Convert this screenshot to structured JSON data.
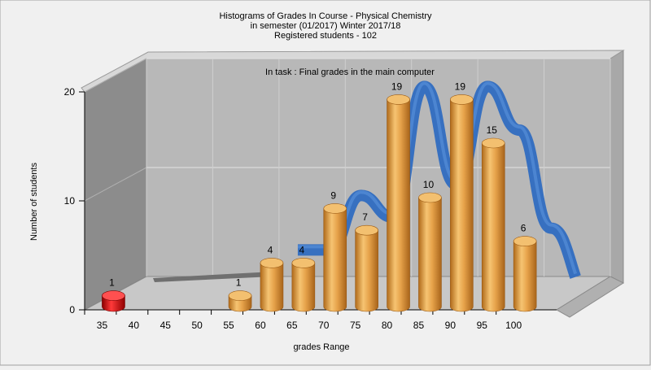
{
  "chart_data": {
    "type": "bar",
    "title_lines": [
      "Histograms of Grades  In Course - Physical Chemistry",
      "in semester  (01/2017) Winter 2017/18",
      "Registered students - 102"
    ],
    "subtitle": "In task : Final grades in the main computer",
    "xlabel": "grades Range",
    "ylabel": "Number of students",
    "ylim": [
      0,
      20
    ],
    "y_ticks": [
      0,
      10,
      20
    ],
    "categories": [
      "35",
      "40",
      "45",
      "50",
      "55",
      "60",
      "65",
      "70",
      "75",
      "80",
      "85",
      "90",
      "95",
      "100"
    ],
    "values": [
      1,
      0,
      0,
      0,
      1,
      4,
      4,
      9,
      7,
      19,
      10,
      19,
      15,
      6
    ],
    "fail_color": "#e01010",
    "pass_color": "#e8a850",
    "curve_color": "#3a78c8",
    "wall_color": "#b8b8b8",
    "side_wall_color": "#8c8c8c"
  }
}
